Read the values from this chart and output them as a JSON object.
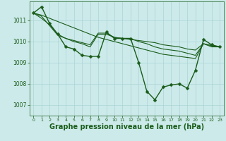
{
  "background_color": "#cceaea",
  "grid_color": "#aad4d4",
  "line_color": "#1a5c1a",
  "xlabel": "Graphe pression niveau de la mer (hPa)",
  "xlabel_fontsize": 7,
  "xlim": [
    -0.5,
    23.5
  ],
  "ylim": [
    1006.5,
    1011.9
  ],
  "yticks": [
    1007,
    1008,
    1009,
    1010,
    1011
  ],
  "xticks": [
    0,
    1,
    2,
    3,
    4,
    5,
    6,
    7,
    8,
    9,
    10,
    11,
    12,
    13,
    14,
    15,
    16,
    17,
    18,
    19,
    20,
    21,
    22,
    23
  ],
  "series": [
    {
      "x": [
        0,
        1,
        2,
        3,
        4,
        5,
        6,
        7,
        8,
        9,
        10,
        11,
        12,
        13,
        14,
        15,
        16,
        17,
        18,
        19,
        20,
        21,
        22,
        23
      ],
      "y": [
        1011.35,
        1011.65,
        1010.85,
        1010.35,
        1009.75,
        1009.65,
        1009.35,
        1009.3,
        1009.3,
        1010.45,
        1010.15,
        1010.15,
        1010.15,
        1009.0,
        1007.65,
        1007.25,
        1007.85,
        1007.95,
        1008.0,
        1007.8,
        1008.65,
        1010.1,
        1009.85,
        1009.75
      ],
      "marker": "D",
      "markersize": 2.5,
      "linewidth": 1.0
    },
    {
      "x": [
        0,
        1,
        2,
        3,
        4,
        5,
        6,
        7,
        8,
        9,
        10,
        11,
        12,
        13,
        14,
        15,
        16,
        17,
        18,
        19,
        20,
        21,
        22,
        23
      ],
      "y": [
        1011.35,
        1011.25,
        1011.1,
        1010.95,
        1010.8,
        1010.65,
        1010.5,
        1010.35,
        1010.2,
        1010.1,
        1010.0,
        1009.9,
        1009.8,
        1009.7,
        1009.6,
        1009.5,
        1009.4,
        1009.35,
        1009.3,
        1009.25,
        1009.2,
        1009.9,
        1009.82,
        1009.75
      ],
      "marker": null,
      "linewidth": 0.8
    },
    {
      "x": [
        0,
        1,
        2,
        3,
        4,
        5,
        6,
        7,
        8,
        9,
        10,
        11,
        12,
        13,
        14,
        15,
        16,
        17,
        18,
        19,
        20,
        21,
        22,
        23
      ],
      "y": [
        1011.35,
        1011.1,
        1010.8,
        1010.35,
        1010.15,
        1010.05,
        1009.95,
        1009.85,
        1010.4,
        1010.4,
        1010.2,
        1010.15,
        1010.1,
        1010.05,
        1010.0,
        1009.95,
        1009.85,
        1009.8,
        1009.75,
        1009.65,
        1009.6,
        1009.9,
        1009.8,
        1009.75
      ],
      "marker": null,
      "linewidth": 0.8
    },
    {
      "x": [
        0,
        1,
        2,
        3,
        4,
        5,
        6,
        7,
        8,
        9,
        10,
        11,
        12,
        13,
        14,
        15,
        16,
        17,
        18,
        19,
        20,
        21,
        22,
        23
      ],
      "y": [
        1011.35,
        1011.2,
        1010.75,
        1010.3,
        1010.15,
        1010.0,
        1009.9,
        1009.75,
        1010.35,
        1010.35,
        1010.2,
        1010.15,
        1010.15,
        1010.0,
        1009.9,
        1009.75,
        1009.65,
        1009.6,
        1009.55,
        1009.45,
        1009.35,
        1009.9,
        1009.75,
        1009.75
      ],
      "marker": null,
      "linewidth": 0.8
    }
  ]
}
